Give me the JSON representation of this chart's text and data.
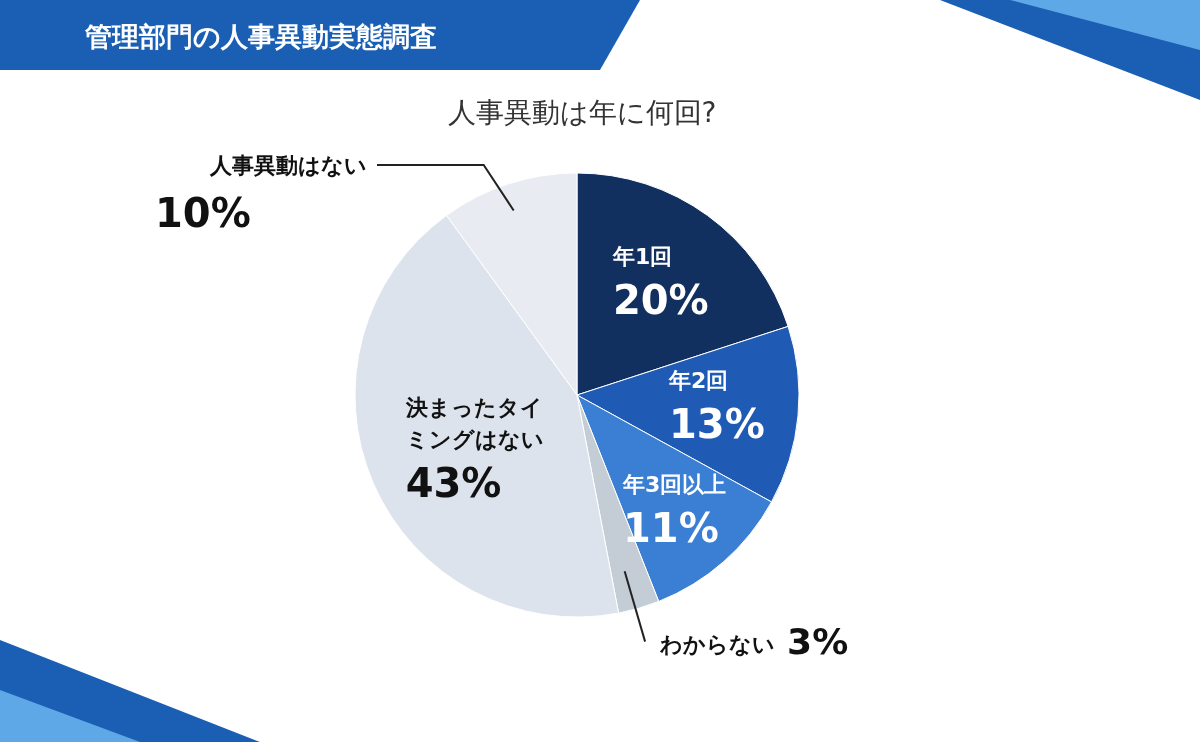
{
  "chart_data": {
    "type": "pie",
    "title": "管理部門の人事異動実態調査",
    "subtitle": "人事異動は年に何回?",
    "categories": [
      "年1回",
      "年2回",
      "年3回以上",
      "わからない",
      "決まったタイミングはない",
      "人事異動はない"
    ],
    "values": [
      20,
      13,
      11,
      3,
      43,
      10
    ],
    "value_labels": [
      "20%",
      "13%",
      "11%",
      "3%",
      "43%",
      "10%"
    ],
    "colors": [
      "#12305f",
      "#1f5bb5",
      "#3b7fd4",
      "#c4ccd6",
      "#dce3ec",
      "#e8ecf2"
    ],
    "legend": false
  }
}
